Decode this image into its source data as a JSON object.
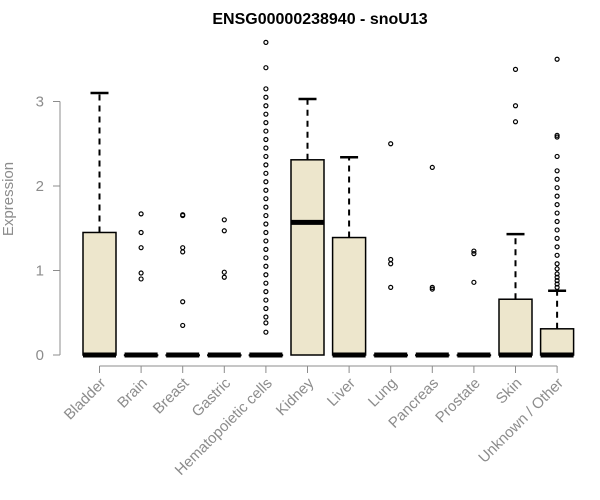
{
  "chart_data": {
    "type": "box",
    "title": "ENSG00000238940 - snoU13",
    "xlabel": "",
    "ylabel": "Expression",
    "ylim": [
      0,
      3.75
    ],
    "yticks": [
      0,
      1,
      2,
      3
    ],
    "box_fill": "#ede6cc",
    "categories": [
      "Bladder",
      "Brain",
      "Breast",
      "Gastric",
      "Hematopoietic cells",
      "Kidney",
      "Liver",
      "Lung",
      "Pancreas",
      "Prostate",
      "Skin",
      "Unknown / Other"
    ],
    "boxes": [
      {
        "q1": 0,
        "median": 0,
        "q3": 1.45,
        "whisker_low": 0,
        "whisker_high": 3.1,
        "outliers": []
      },
      {
        "q1": 0,
        "median": 0,
        "q3": 0,
        "whisker_low": 0,
        "whisker_high": 0,
        "outliers": [
          1.67,
          1.45,
          1.27,
          0.97,
          0.9
        ]
      },
      {
        "q1": 0,
        "median": 0,
        "q3": 0,
        "whisker_low": 0,
        "whisker_high": 0,
        "outliers": [
          1.65,
          1.66,
          1.27,
          1.22,
          0.63,
          0.35
        ]
      },
      {
        "q1": 0,
        "median": 0,
        "q3": 0,
        "whisker_low": 0,
        "whisker_high": 0,
        "outliers": [
          1.6,
          1.47,
          0.98,
          0.92
        ]
      },
      {
        "q1": 0,
        "median": 0,
        "q3": 0,
        "whisker_low": 0,
        "whisker_high": 0,
        "outliers": [
          3.7,
          3.4,
          3.15,
          3.05,
          2.95,
          2.85,
          2.75,
          2.65,
          2.55,
          2.45,
          2.35,
          2.25,
          2.15,
          2.05,
          1.95,
          1.85,
          1.75,
          1.65,
          1.55,
          1.45,
          1.35,
          1.25,
          1.15,
          1.05,
          0.95,
          0.85,
          0.75,
          0.65,
          0.55,
          0.45,
          0.38,
          0.27
        ]
      },
      {
        "q1": 0,
        "median": 1.57,
        "q3": 2.31,
        "whisker_low": 0,
        "whisker_high": 3.03,
        "outliers": []
      },
      {
        "q1": 0,
        "median": 0,
        "q3": 1.39,
        "whisker_low": 0,
        "whisker_high": 2.34,
        "outliers": []
      },
      {
        "q1": 0,
        "median": 0,
        "q3": 0,
        "whisker_low": 0,
        "whisker_high": 0,
        "outliers": [
          2.5,
          1.13,
          1.08,
          0.8
        ]
      },
      {
        "q1": 0,
        "median": 0,
        "q3": 0,
        "whisker_low": 0,
        "whisker_high": 0,
        "outliers": [
          2.22,
          0.8,
          0.78
        ]
      },
      {
        "q1": 0,
        "median": 0,
        "q3": 0,
        "whisker_low": 0,
        "whisker_high": 0,
        "outliers": [
          1.23,
          1.2,
          0.86
        ]
      },
      {
        "q1": 0,
        "median": 0,
        "q3": 0.66,
        "whisker_low": 0,
        "whisker_high": 1.43,
        "outliers": [
          3.38,
          2.95,
          2.76
        ]
      },
      {
        "q1": 0,
        "median": 0,
        "q3": 0.31,
        "whisker_low": 0,
        "whisker_high": 0.76,
        "outliers": [
          3.5,
          2.6,
          2.58,
          2.35,
          2.18,
          2.08,
          1.98,
          1.88,
          1.78,
          1.68,
          1.58,
          1.48,
          1.38,
          1.28,
          1.18,
          1.08,
          1.02,
          0.96,
          0.92,
          0.88,
          0.84,
          0.8
        ]
      }
    ]
  }
}
